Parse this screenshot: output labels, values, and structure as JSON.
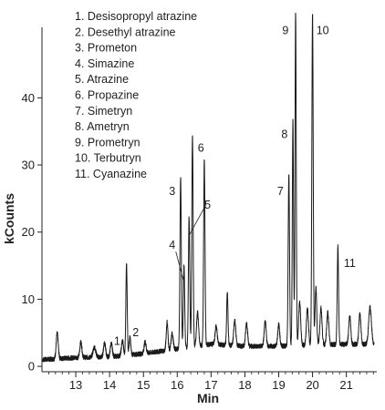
{
  "chart_data": {
    "type": "line",
    "xlabel": "Min",
    "ylabel": "kCounts",
    "xlim": [
      12.0,
      21.9
    ],
    "ylim": [
      -0.8,
      50.5
    ],
    "xticks": [
      13,
      14,
      15,
      16,
      17,
      18,
      19,
      20,
      21
    ],
    "yticks": [
      0,
      10,
      20,
      30,
      40
    ],
    "grid": false,
    "line_color": "#1a1a1a",
    "legend": [
      "1. Desisopropyl atrazine",
      "2. Desethyl atrazine",
      "3. Prometon",
      "4. Simazine",
      "5. Atrazine",
      "6. Propazine",
      "7. Simetryn",
      "8. Ametryn",
      "9. Prometryn",
      "10. Terbutryn",
      "11. Cyanazine"
    ],
    "baseline": [
      [
        12.0,
        1.0
      ],
      [
        13.0,
        1.3
      ],
      [
        14.0,
        1.4
      ],
      [
        15.0,
        1.9
      ],
      [
        16.0,
        2.6
      ],
      [
        17.0,
        3.3
      ],
      [
        18.0,
        3.0
      ],
      [
        19.0,
        3.0
      ],
      [
        20.0,
        3.2
      ],
      [
        21.0,
        3.3
      ],
      [
        21.9,
        3.3
      ]
    ],
    "peaks": [
      {
        "x": 12.45,
        "h": 3.8,
        "w": 0.03
      },
      {
        "x": 13.15,
        "h": 2.3,
        "w": 0.03
      },
      {
        "x": 13.55,
        "h": 1.5,
        "w": 0.04
      },
      {
        "x": 13.85,
        "h": 2.2,
        "w": 0.03
      },
      {
        "x": 14.05,
        "h": 2.0,
        "w": 0.03
      },
      {
        "x": 14.38,
        "h": 2.2,
        "w": 0.03
      },
      {
        "x": 14.5,
        "h": 13.5,
        "w": 0.02
      },
      {
        "x": 14.6,
        "h": 2.6,
        "w": 0.025
      },
      {
        "x": 15.05,
        "h": 1.7,
        "w": 0.03
      },
      {
        "x": 15.7,
        "h": 4.2,
        "w": 0.025
      },
      {
        "x": 15.85,
        "h": 2.4,
        "w": 0.03
      },
      {
        "x": 16.1,
        "h": 25.5,
        "w": 0.02
      },
      {
        "x": 16.2,
        "h": 12.5,
        "w": 0.02
      },
      {
        "x": 16.35,
        "h": 19.5,
        "w": 0.02
      },
      {
        "x": 16.45,
        "h": 31.5,
        "w": 0.02
      },
      {
        "x": 16.6,
        "h": 5.0,
        "w": 0.03
      },
      {
        "x": 16.8,
        "h": 27.5,
        "w": 0.02
      },
      {
        "x": 17.15,
        "h": 2.8,
        "w": 0.03
      },
      {
        "x": 17.48,
        "h": 7.8,
        "w": 0.02
      },
      {
        "x": 17.7,
        "h": 3.8,
        "w": 0.03
      },
      {
        "x": 18.05,
        "h": 3.5,
        "w": 0.03
      },
      {
        "x": 18.6,
        "h": 3.6,
        "w": 0.03
      },
      {
        "x": 19.0,
        "h": 3.2,
        "w": 0.03
      },
      {
        "x": 19.3,
        "h": 25.5,
        "w": 0.02
      },
      {
        "x": 19.42,
        "h": 33.5,
        "w": 0.018
      },
      {
        "x": 19.5,
        "h": 49.5,
        "w": 0.018
      },
      {
        "x": 19.62,
        "h": 6.5,
        "w": 0.03
      },
      {
        "x": 19.85,
        "h": 5.5,
        "w": 0.03
      },
      {
        "x": 20.0,
        "h": 49.2,
        "w": 0.02
      },
      {
        "x": 20.1,
        "h": 8.5,
        "w": 0.025
      },
      {
        "x": 20.25,
        "h": 5.5,
        "w": 0.03
      },
      {
        "x": 20.45,
        "h": 4.8,
        "w": 0.03
      },
      {
        "x": 20.75,
        "h": 14.5,
        "w": 0.02
      },
      {
        "x": 21.1,
        "h": 4.2,
        "w": 0.03
      },
      {
        "x": 21.4,
        "h": 4.5,
        "w": 0.03
      },
      {
        "x": 21.7,
        "h": 5.5,
        "w": 0.04
      }
    ],
    "peak_labels": [
      {
        "text": "1",
        "x": 14.4,
        "y": 2.5,
        "tx": 14.22,
        "ty": 3.2
      },
      {
        "text": "2",
        "x": 14.6,
        "y": 2.8,
        "tx": 14.77,
        "ty": 4.5
      },
      {
        "text": "3",
        "x": 16.1,
        "y": 25.0,
        "tx": 15.85,
        "ty": 25.5
      },
      {
        "text": "4",
        "x": 16.2,
        "y": 12.5,
        "tx": 15.85,
        "ty": 17.5,
        "leader": true
      },
      {
        "text": "5",
        "x": 16.35,
        "y": 19.5,
        "tx": 16.9,
        "ty": 23.5,
        "leader": true
      },
      {
        "text": "6",
        "x": 16.45,
        "y": 31.5,
        "tx": 16.7,
        "ty": 32.0
      },
      {
        "text": "7",
        "x": 19.3,
        "y": 25.0,
        "tx": 19.05,
        "ty": 25.5
      },
      {
        "text": "8",
        "x": 19.42,
        "y": 33.5,
        "tx": 19.17,
        "ty": 34.0
      },
      {
        "text": "9",
        "x": 19.5,
        "y": 49.5,
        "tx": 19.2,
        "ty": 49.5
      },
      {
        "text": "10",
        "x": 20.0,
        "y": 49.2,
        "tx": 20.3,
        "ty": 49.5
      },
      {
        "text": "11",
        "x": 20.75,
        "y": 14.5,
        "tx": 21.1,
        "ty": 14.8
      }
    ]
  }
}
